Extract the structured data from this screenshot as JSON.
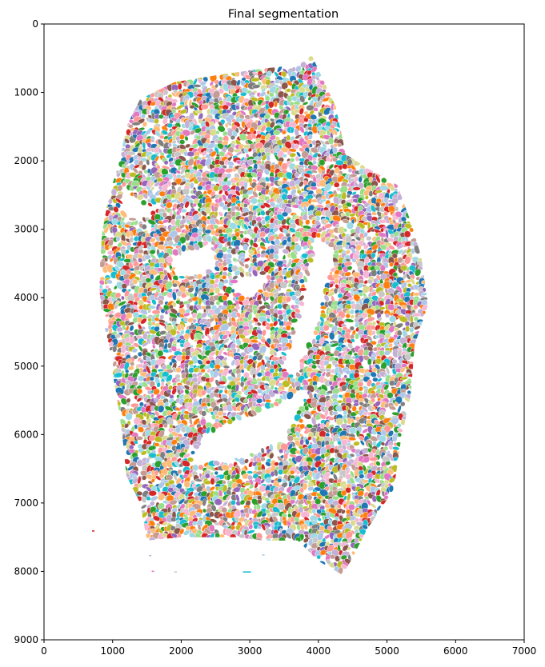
{
  "chart_data": {
    "type": "heatmap",
    "title": "Final segmentation",
    "xlabel": "",
    "ylabel": "",
    "xlim": [
      0,
      7000
    ],
    "ylim": [
      9000,
      0
    ],
    "y_inverted": true,
    "x_ticks": [
      "0",
      "1000",
      "2000",
      "3000",
      "4000",
      "5000",
      "6000",
      "7000"
    ],
    "y_ticks": [
      "0",
      "1000",
      "2000",
      "3000",
      "4000",
      "5000",
      "6000",
      "7000",
      "8000",
      "9000"
    ],
    "background_color": "#ffffff",
    "palette": [
      "#1f77b4",
      "#aec7e8",
      "#ff7f0e",
      "#ffbb78",
      "#2ca02c",
      "#98df8a",
      "#d62728",
      "#ff9896",
      "#9467bd",
      "#c5b0d5",
      "#8c564b",
      "#c49c94",
      "#e377c2",
      "#f7b6d2",
      "#7f7f7f",
      "#c7c7c7",
      "#bcbd22",
      "#dbdb8d",
      "#17becf",
      "#9edae5"
    ],
    "tissue_outline": [
      [
        3900,
        450
      ],
      [
        4250,
        1200
      ],
      [
        4400,
        1900
      ],
      [
        4700,
        2100
      ],
      [
        5150,
        2350
      ],
      [
        5350,
        2900
      ],
      [
        5500,
        3400
      ],
      [
        5600,
        4100
      ],
      [
        5400,
        4700
      ],
      [
        5350,
        5400
      ],
      [
        5200,
        6100
      ],
      [
        5100,
        6800
      ],
      [
        4700,
        7400
      ],
      [
        4500,
        7800
      ],
      [
        4350,
        8050
      ],
      [
        4000,
        7850
      ],
      [
        3700,
        7550
      ],
      [
        3200,
        7550
      ],
      [
        2800,
        7500
      ],
      [
        2000,
        7500
      ],
      [
        1500,
        7550
      ],
      [
        1400,
        7000
      ],
      [
        1200,
        6600
      ],
      [
        1150,
        6100
      ],
      [
        1100,
        5700
      ],
      [
        1000,
        5100
      ],
      [
        950,
        4700
      ],
      [
        850,
        4300
      ],
      [
        800,
        3800
      ],
      [
        850,
        3000
      ],
      [
        950,
        2500
      ],
      [
        1100,
        2000
      ],
      [
        1200,
        1500
      ],
      [
        1400,
        1100
      ],
      [
        1900,
        850
      ],
      [
        2500,
        750
      ],
      [
        3200,
        650
      ],
      [
        3700,
        600
      ]
    ],
    "empty_regions": [
      [
        [
          3950,
          3100
        ],
        [
          4250,
          3300
        ],
        [
          3950,
          4500
        ],
        [
          3650,
          5200
        ],
        [
          3500,
          5000
        ],
        [
          3800,
          4000
        ]
      ],
      [
        [
          2300,
          6000
        ],
        [
          3300,
          5600
        ],
        [
          3900,
          5300
        ],
        [
          3500,
          6100
        ],
        [
          2700,
          6400
        ],
        [
          2100,
          6450
        ]
      ],
      [
        [
          1150,
          2400
        ],
        [
          1550,
          2700
        ],
        [
          1350,
          2900
        ],
        [
          1100,
          2700
        ]
      ],
      [
        [
          2800,
          3700
        ],
        [
          3250,
          3650
        ],
        [
          3050,
          4000
        ],
        [
          2750,
          3950
        ]
      ],
      [
        [
          1850,
          3400
        ],
        [
          2450,
          3200
        ],
        [
          2500,
          3600
        ],
        [
          2000,
          3700
        ]
      ]
    ],
    "stray_marks": [
      [
        700,
        7400
      ],
      [
        1530,
        7760
      ],
      [
        1570,
        7990
      ],
      [
        1900,
        8000
      ],
      [
        2900,
        8000
      ],
      [
        3180,
        7750
      ]
    ]
  }
}
